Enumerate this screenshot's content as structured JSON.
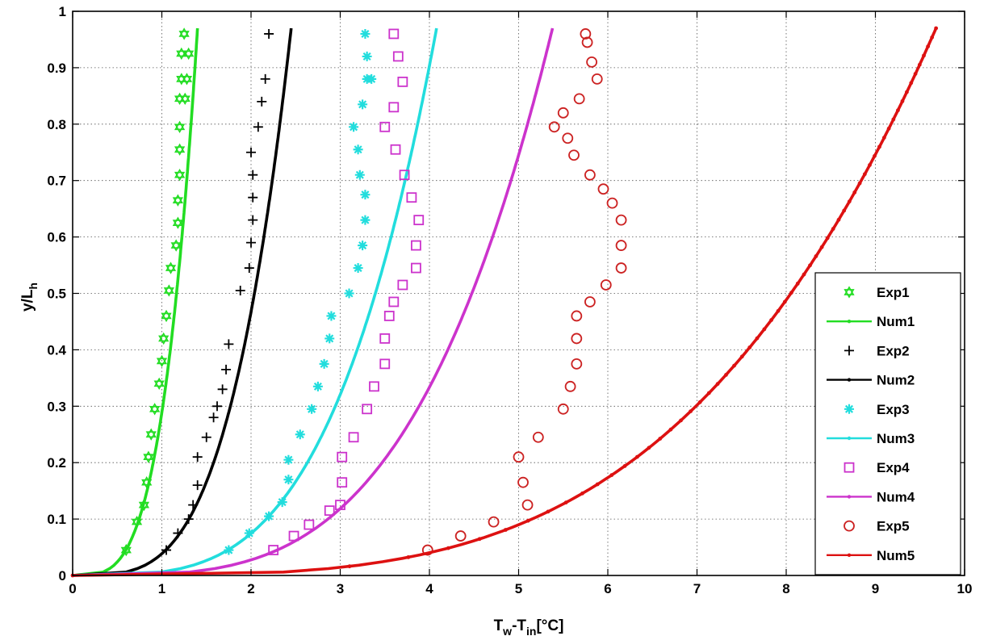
{
  "chart_data": {
    "type": "line",
    "xlabel": "T",
    "xlabel_sub1": "w",
    "xlabel_mid": "-T",
    "xlabel_sub2": "in",
    "xlabel_tail": "[°C]",
    "ylabel": "y/L",
    "ylabel_sub": "h",
    "xlim": [
      0,
      10
    ],
    "ylim": [
      0,
      1
    ],
    "xticks": [
      "0",
      "1",
      "2",
      "3",
      "4",
      "5",
      "6",
      "7",
      "8",
      "9",
      "10"
    ],
    "yticks": [
      "0",
      "0.1",
      "0.2",
      "0.3",
      "0.4",
      "0.5",
      "0.6",
      "0.7",
      "0.8",
      "0.9",
      "1"
    ],
    "grid": true,
    "legend_position": "bottom-right",
    "series": [
      {
        "name": "Exp1",
        "kind": "scatter",
        "marker": "hexagram",
        "color": "#22dd22",
        "x": [
          0.6,
          0.72,
          0.8,
          0.83,
          0.85,
          0.88,
          0.92,
          0.97,
          1.0,
          1.02,
          1.05,
          1.08,
          1.1,
          1.16,
          1.18,
          1.18,
          1.2,
          1.2,
          1.2,
          1.2,
          1.22,
          1.22,
          1.25,
          1.26,
          1.28,
          1.3
        ],
        "y": [
          0.045,
          0.095,
          0.125,
          0.165,
          0.21,
          0.25,
          0.295,
          0.34,
          0.38,
          0.42,
          0.46,
          0.505,
          0.545,
          0.585,
          0.625,
          0.665,
          0.71,
          0.755,
          0.795,
          0.845,
          0.88,
          0.925,
          0.96,
          0.845,
          0.88,
          0.925
        ]
      },
      {
        "name": "Num1",
        "kind": "line",
        "color": "#22dd22",
        "k": 1.4
      },
      {
        "name": "Exp2",
        "kind": "scatter",
        "marker": "plus",
        "color": "#000000",
        "x": [
          1.05,
          1.18,
          1.3,
          1.35,
          1.4,
          1.4,
          1.5,
          1.58,
          1.62,
          1.68,
          1.72,
          1.75,
          1.88,
          1.98,
          2.0,
          2.02,
          2.02,
          2.02,
          2.0,
          2.08,
          2.12,
          2.16,
          2.2
        ],
        "y": [
          0.045,
          0.075,
          0.1,
          0.125,
          0.16,
          0.21,
          0.245,
          0.28,
          0.3,
          0.33,
          0.365,
          0.41,
          0.505,
          0.545,
          0.59,
          0.63,
          0.67,
          0.71,
          0.75,
          0.795,
          0.84,
          0.88,
          0.96
        ]
      },
      {
        "name": "Num2",
        "kind": "line",
        "color": "#000000",
        "k": 2.45
      },
      {
        "name": "Exp3",
        "kind": "scatter",
        "marker": "asterisk",
        "color": "#22dddd",
        "x": [
          1.75,
          1.98,
          2.2,
          2.35,
          2.42,
          2.42,
          2.55,
          2.68,
          2.75,
          2.82,
          2.88,
          2.9,
          3.1,
          3.2,
          3.25,
          3.28,
          3.28,
          3.22,
          3.2,
          3.15,
          3.25,
          3.3,
          3.3,
          3.28,
          3.35
        ],
        "y": [
          0.045,
          0.075,
          0.105,
          0.13,
          0.17,
          0.205,
          0.25,
          0.295,
          0.335,
          0.375,
          0.42,
          0.46,
          0.5,
          0.545,
          0.585,
          0.63,
          0.675,
          0.71,
          0.755,
          0.795,
          0.835,
          0.88,
          0.92,
          0.96,
          0.88
        ]
      },
      {
        "name": "Num3",
        "kind": "line",
        "color": "#22dddd",
        "k": 4.08
      },
      {
        "name": "Exp4",
        "kind": "scatter",
        "marker": "square",
        "color": "#cc33cc",
        "x": [
          2.25,
          2.48,
          2.65,
          2.88,
          3.0,
          3.02,
          3.02,
          3.15,
          3.3,
          3.38,
          3.5,
          3.5,
          3.55,
          3.6,
          3.7,
          3.85,
          3.85,
          3.88,
          3.8,
          3.72,
          3.62,
          3.5,
          3.6,
          3.7,
          3.65,
          3.6
        ],
        "y": [
          0.045,
          0.07,
          0.09,
          0.115,
          0.125,
          0.165,
          0.21,
          0.245,
          0.295,
          0.335,
          0.375,
          0.42,
          0.46,
          0.485,
          0.515,
          0.545,
          0.585,
          0.63,
          0.67,
          0.71,
          0.755,
          0.795,
          0.83,
          0.875,
          0.92,
          0.96
        ]
      },
      {
        "name": "Num4",
        "kind": "line",
        "color": "#cc33cc",
        "k": 5.38
      },
      {
        "name": "Exp5",
        "kind": "scatter",
        "marker": "circle",
        "color": "#cc2222",
        "x": [
          3.98,
          4.35,
          4.72,
          5.1,
          5.05,
          5.0,
          5.22,
          5.5,
          5.58,
          5.65,
          5.65,
          5.65,
          5.8,
          5.98,
          6.15,
          6.15,
          6.15,
          6.05,
          5.95,
          5.8,
          5.62,
          5.55,
          5.5,
          5.4,
          5.68,
          5.88,
          5.82,
          5.77,
          5.75
        ],
        "y": [
          0.045,
          0.07,
          0.095,
          0.125,
          0.165,
          0.21,
          0.245,
          0.295,
          0.335,
          0.375,
          0.42,
          0.46,
          0.485,
          0.515,
          0.545,
          0.585,
          0.63,
          0.66,
          0.685,
          0.71,
          0.745,
          0.775,
          0.82,
          0.795,
          0.845,
          0.88,
          0.91,
          0.945,
          0.96
        ]
      },
      {
        "name": "Num5",
        "kind": "line",
        "color": "#dd1111",
        "k": 9.68,
        "dots": true
      }
    ]
  }
}
